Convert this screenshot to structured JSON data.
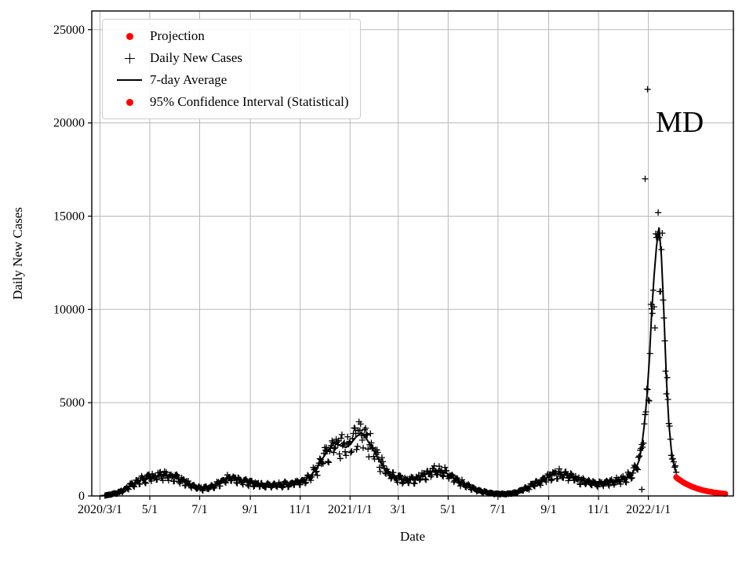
{
  "annotation": "MD",
  "axes": {
    "xlabel": "Date",
    "ylabel": "Daily New Cases"
  },
  "legend": {
    "items": [
      {
        "label": "Projection",
        "marker": "red-dot"
      },
      {
        "label": "Daily New Cases",
        "marker": "black-plus"
      },
      {
        "label": "7-day Average",
        "marker": "black-line"
      },
      {
        "label": "95% Confidence Interval (Statistical)",
        "marker": "red-dot"
      }
    ]
  },
  "colors": {
    "projection": "#ff0000",
    "daily": "#000000",
    "average": "#000000",
    "grid": "#b8b8b8",
    "axis": "#000000"
  },
  "chart_data": {
    "type": "line+scatter",
    "title": "",
    "xlabel": "Date",
    "ylabel": "Daily New Cases",
    "xlim": [
      -10,
      775
    ],
    "ylim": [
      0,
      26000
    ],
    "grid": true,
    "legend_position": "upper-left",
    "x_ticks": [
      {
        "day": 0,
        "label": "2020/3/1"
      },
      {
        "day": 61,
        "label": "5/1"
      },
      {
        "day": 122,
        "label": "7/1"
      },
      {
        "day": 184,
        "label": "9/1"
      },
      {
        "day": 245,
        "label": "11/1"
      },
      {
        "day": 306,
        "label": "2021/1/1"
      },
      {
        "day": 365,
        "label": "3/1"
      },
      {
        "day": 426,
        "label": "5/1"
      },
      {
        "day": 487,
        "label": "7/1"
      },
      {
        "day": 549,
        "label": "9/1"
      },
      {
        "day": 610,
        "label": "11/1"
      },
      {
        "day": 671,
        "label": "2022/1/1"
      }
    ],
    "y_ticks": [
      0,
      5000,
      10000,
      15000,
      20000,
      25000
    ],
    "avg_series_units": "days since 2020-03-01 vs 7-day average cases",
    "avg_series": [
      [
        0,
        5
      ],
      [
        7,
        30
      ],
      [
        14,
        90
      ],
      [
        21,
        160
      ],
      [
        28,
        300
      ],
      [
        35,
        500
      ],
      [
        42,
        700
      ],
      [
        49,
        850
      ],
      [
        56,
        950
      ],
      [
        63,
        1020
      ],
      [
        70,
        1080
      ],
      [
        77,
        1120
      ],
      [
        84,
        1060
      ],
      [
        91,
        1000
      ],
      [
        98,
        880
      ],
      [
        105,
        730
      ],
      [
        112,
        580
      ],
      [
        119,
        450
      ],
      [
        126,
        400
      ],
      [
        133,
        460
      ],
      [
        140,
        560
      ],
      [
        147,
        720
      ],
      [
        154,
        900
      ],
      [
        161,
        1000
      ],
      [
        168,
        920
      ],
      [
        175,
        820
      ],
      [
        182,
        720
      ],
      [
        189,
        660
      ],
      [
        196,
        600
      ],
      [
        203,
        560
      ],
      [
        210,
        550
      ],
      [
        217,
        590
      ],
      [
        224,
        610
      ],
      [
        231,
        650
      ],
      [
        238,
        700
      ],
      [
        245,
        760
      ],
      [
        252,
        900
      ],
      [
        259,
        1150
      ],
      [
        266,
        1550
      ],
      [
        273,
        2050
      ],
      [
        280,
        2500
      ],
      [
        287,
        2850
      ],
      [
        294,
        2700
      ],
      [
        301,
        2600
      ],
      [
        306,
        2750
      ],
      [
        313,
        3150
      ],
      [
        320,
        3400
      ],
      [
        327,
        3000
      ],
      [
        334,
        2500
      ],
      [
        341,
        1950
      ],
      [
        348,
        1500
      ],
      [
        355,
        1200
      ],
      [
        362,
        1000
      ],
      [
        369,
        900
      ],
      [
        376,
        860
      ],
      [
        383,
        900
      ],
      [
        390,
        1000
      ],
      [
        397,
        1120
      ],
      [
        404,
        1260
      ],
      [
        411,
        1380
      ],
      [
        418,
        1320
      ],
      [
        425,
        1200
      ],
      [
        432,
        1000
      ],
      [
        439,
        800
      ],
      [
        446,
        620
      ],
      [
        453,
        470
      ],
      [
        460,
        350
      ],
      [
        467,
        250
      ],
      [
        474,
        180
      ],
      [
        481,
        135
      ],
      [
        488,
        110
      ],
      [
        495,
        105
      ],
      [
        502,
        125
      ],
      [
        509,
        185
      ],
      [
        516,
        290
      ],
      [
        523,
        430
      ],
      [
        530,
        610
      ],
      [
        537,
        760
      ],
      [
        544,
        920
      ],
      [
        551,
        1060
      ],
      [
        558,
        1180
      ],
      [
        565,
        1160
      ],
      [
        572,
        1100
      ],
      [
        579,
        1000
      ],
      [
        586,
        900
      ],
      [
        593,
        800
      ],
      [
        600,
        720
      ],
      [
        607,
        660
      ],
      [
        614,
        660
      ],
      [
        621,
        700
      ],
      [
        628,
        760
      ],
      [
        635,
        820
      ],
      [
        642,
        920
      ],
      [
        649,
        1120
      ],
      [
        656,
        1500
      ],
      [
        660,
        1950
      ],
      [
        663,
        2700
      ],
      [
        666,
        3800
      ],
      [
        669,
        5200
      ],
      [
        672,
        7200
      ],
      [
        675,
        9800
      ],
      [
        678,
        11800
      ],
      [
        681,
        13400
      ],
      [
        684,
        14400
      ],
      [
        687,
        12800
      ],
      [
        690,
        9800
      ],
      [
        693,
        6300
      ],
      [
        696,
        3900
      ],
      [
        699,
        2500
      ],
      [
        702,
        1700
      ],
      [
        705,
        1250
      ]
    ],
    "daily_outliers": [
      [
        670,
        21800
      ],
      [
        667,
        17000
      ],
      [
        663,
        350
      ]
    ],
    "projection_series": [
      [
        705,
        1000
      ],
      [
        707,
        931
      ],
      [
        709,
        866
      ],
      [
        711,
        806
      ],
      [
        713,
        750
      ],
      [
        715,
        698
      ],
      [
        717,
        649
      ],
      [
        719,
        604
      ],
      [
        721,
        562
      ],
      [
        723,
        523
      ],
      [
        725,
        487
      ],
      [
        727,
        453
      ],
      [
        729,
        422
      ],
      [
        731,
        392
      ],
      [
        733,
        365
      ],
      [
        735,
        340
      ],
      [
        737,
        316
      ],
      [
        739,
        294
      ],
      [
        741,
        274
      ],
      [
        743,
        255
      ],
      [
        745,
        237
      ],
      [
        747,
        221
      ],
      [
        749,
        205
      ],
      [
        751,
        191
      ],
      [
        753,
        178
      ],
      [
        755,
        165
      ],
      [
        757,
        154
      ],
      [
        759,
        143
      ],
      [
        761,
        133
      ],
      [
        763,
        124
      ],
      [
        765,
        115
      ]
    ],
    "scatter_model": {
      "description": "daily plus-markers scatter around 7-day average",
      "seed": 42,
      "start_day": 6,
      "end_day": 705,
      "weekly_pattern": [
        0.8,
        1.04,
        1.11,
        1.08,
        1.05,
        1.0,
        0.82
      ],
      "noise": 0.12
    }
  }
}
